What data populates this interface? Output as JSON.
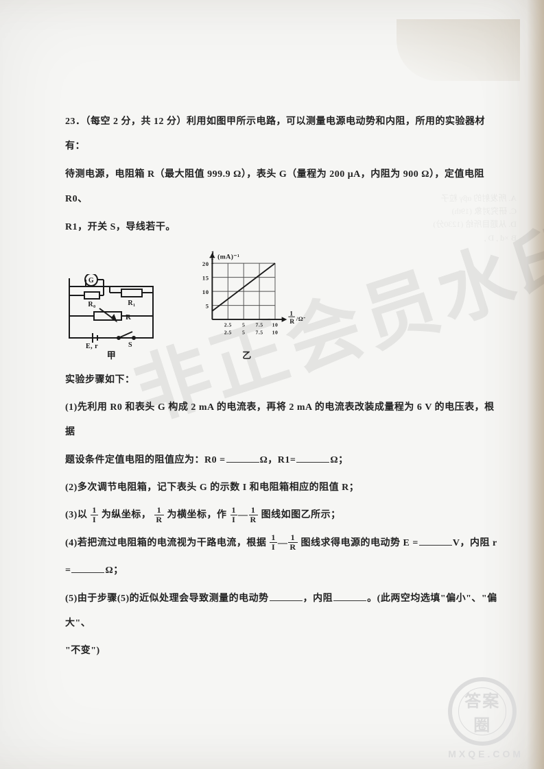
{
  "q": {
    "number": "23．",
    "heading": "（每空 2 分，共 12 分）利用如图甲所示电路，可以测量电源电动势和内阻，所用的实验器材有：",
    "line2": "待测电源，电阻箱 R（最大阻值 999.9 Ω），表头 G（量程为 200 μA，内阻为 900 Ω），定值电阻 R0、",
    "line3": "R1，开关 S，导线若干。",
    "cap_jia": "甲",
    "cap_yi": "乙",
    "steps_intro": "实验步骤如下：",
    "s1a": "(1)先利用 R0 和表头 G 构成 2 mA 的电流表，再将 2 mA 的电流表改装成量程为 6 V 的电压表，根据",
    "s1b_pre": "题设条件定值电阻的阻值应为：R0 =",
    "s1b_mid": "Ω，R1=",
    "s1b_post": "Ω；",
    "s2": "(2)多次调节电阻箱，记下表头 G 的示数 I 和电阻箱相应的阻值 R；",
    "s3_pre": "(3)以",
    "s3_mid1": "为纵坐标，",
    "s3_mid2": "为横坐标，作",
    "s3_dash": "—",
    "s3_post": "图线如图乙所示；",
    "s4_pre": "(4)若把流过电阻箱的电流视为干路电流，根据",
    "s4_mid": "图线求得电源的电动势 E =",
    "s4_unit": "V，内阻 r",
    "s4_eq": "=",
    "s4_unit2": "Ω；",
    "s5_pre": "(5)由于步骤(5)的近似处理会导致测量的电动势",
    "s5_mid": "，内阻",
    "s5_post": "。(此两空均选填\"偏小\"、\"偏大\"、",
    "s5_last": "\"不变\")"
  },
  "circuit": {
    "meter_label": "G",
    "r0_label": "R₀",
    "r1_label": "R₁",
    "r_label": "R",
    "emf_label": "E, r",
    "switch_label": "S"
  },
  "graph": {
    "y_label_prefix": "1/",
    "y_label_unit": "(mA)⁻¹",
    "x_label_prefix": "1/",
    "x_label_var": "R",
    "x_label_unit": "/Ω⁻¹",
    "y_ticks": [
      "5",
      "10",
      "15",
      "20"
    ],
    "x_ticks_top": [
      "2.5",
      "5",
      "7.5",
      "10"
    ],
    "x_ticks_bottom": [
      "2.5",
      "5",
      "7.5",
      "10"
    ],
    "y_max": 20,
    "x_max": 10,
    "grid_steps_x": 4,
    "grid_steps_y": 4,
    "line_points": [
      [
        0,
        3
      ],
      [
        10,
        20
      ]
    ],
    "colors": {
      "grid": "#505050",
      "axis": "#1a1a1a",
      "line": "#1a1a1a",
      "bg": "#f6f6f4"
    }
  },
  "watermark": "非正会员水印",
  "stamp_text": "答案圈",
  "stamp_url": "MXQE.COM"
}
